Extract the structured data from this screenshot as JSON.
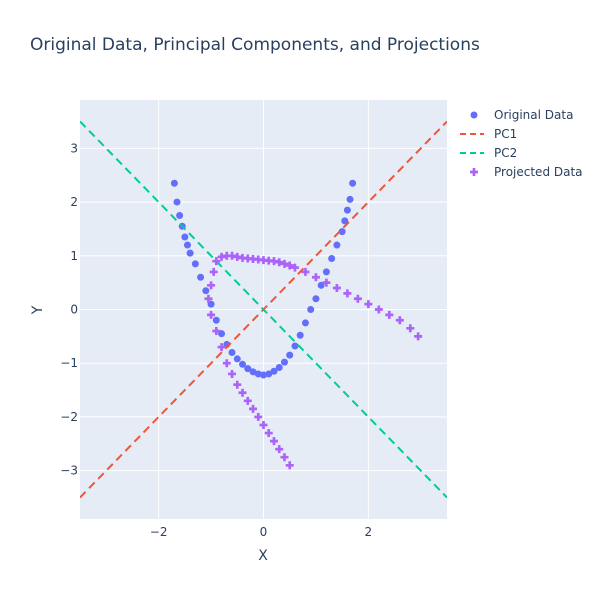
{
  "chart_data": {
    "type": "scatter",
    "title": "Original Data, Principal Components, and Projections",
    "xlabel": "X",
    "ylabel": "Y",
    "xlim": [
      -3.5,
      3.5
    ],
    "ylim": [
      -3.9,
      3.9
    ],
    "xticks": [
      -2,
      0,
      2
    ],
    "yticks": [
      -3,
      -2,
      -1,
      0,
      1,
      2,
      3
    ],
    "xtick_labels": [
      "−2",
      "0",
      "2"
    ],
    "ytick_labels": [
      "−3",
      "−2",
      "−1",
      "0",
      "1",
      "2",
      "3"
    ],
    "grid": true,
    "legend_position": "top-right",
    "colors": {
      "original": "#636efa",
      "pc1": "#ef553b",
      "pc2": "#00cc96",
      "projected": "#ab63fa",
      "plot_bg": "#e5ecf6"
    },
    "series": [
      {
        "name": "Original Data",
        "mode": "markers",
        "marker": "circle",
        "x": [
          -1.7,
          -1.65,
          -1.6,
          -1.55,
          -1.5,
          -1.45,
          -1.4,
          -1.3,
          -1.2,
          -1.1,
          -1.0,
          -0.9,
          -0.8,
          -0.7,
          -0.6,
          -0.5,
          -0.4,
          -0.3,
          -0.2,
          -0.1,
          0.0,
          0.1,
          0.2,
          0.3,
          0.4,
          0.5,
          0.6,
          0.7,
          0.8,
          0.9,
          1.0,
          1.1,
          1.2,
          1.3,
          1.4,
          1.5,
          1.55,
          1.6,
          1.65,
          1.7
        ],
        "y": [
          2.35,
          2.0,
          1.75,
          1.55,
          1.35,
          1.2,
          1.05,
          0.85,
          0.6,
          0.35,
          0.1,
          -0.2,
          -0.45,
          -0.65,
          -0.8,
          -0.92,
          -1.02,
          -1.1,
          -1.16,
          -1.2,
          -1.22,
          -1.2,
          -1.15,
          -1.08,
          -0.98,
          -0.85,
          -0.68,
          -0.48,
          -0.25,
          0.0,
          0.2,
          0.45,
          0.7,
          0.95,
          1.2,
          1.45,
          1.65,
          1.85,
          2.05,
          2.35
        ]
      },
      {
        "name": "PC1",
        "mode": "lines",
        "dash": "dash",
        "x": [
          -3.5,
          3.5
        ],
        "y": [
          -3.5,
          3.5
        ]
      },
      {
        "name": "PC2",
        "mode": "lines",
        "dash": "dash",
        "x": [
          -3.5,
          3.5
        ],
        "y": [
          3.5,
          -3.5
        ]
      },
      {
        "name": "Projected Data",
        "mode": "markers",
        "marker": "cross",
        "x": [
          0.5,
          0.4,
          0.3,
          0.2,
          0.1,
          0.0,
          -0.1,
          -0.2,
          -0.3,
          -0.4,
          -0.5,
          -0.6,
          -0.7,
          -0.8,
          -0.9,
          -1.0,
          -1.05,
          -1.0,
          -0.95,
          -0.9,
          -0.8,
          -0.7,
          -0.6,
          -0.5,
          -0.4,
          -0.3,
          -0.2,
          -0.1,
          0.0,
          0.1,
          0.2,
          0.3,
          0.4,
          0.5,
          0.6,
          0.8,
          1.0,
          1.2,
          1.4,
          1.6,
          1.8,
          2.0,
          2.2,
          2.4,
          2.6,
          2.8,
          2.95
        ],
        "y": [
          -2.9,
          -2.75,
          -2.6,
          -2.45,
          -2.3,
          -2.15,
          -2.0,
          -1.85,
          -1.7,
          -1.55,
          -1.4,
          -1.2,
          -1.0,
          -0.7,
          -0.4,
          -0.1,
          0.2,
          0.45,
          0.7,
          0.9,
          0.98,
          1.0,
          1.0,
          0.98,
          0.96,
          0.95,
          0.94,
          0.93,
          0.92,
          0.91,
          0.9,
          0.88,
          0.85,
          0.82,
          0.78,
          0.7,
          0.6,
          0.5,
          0.4,
          0.3,
          0.2,
          0.1,
          0.0,
          -0.1,
          -0.2,
          -0.35,
          -0.5
        ]
      }
    ]
  }
}
